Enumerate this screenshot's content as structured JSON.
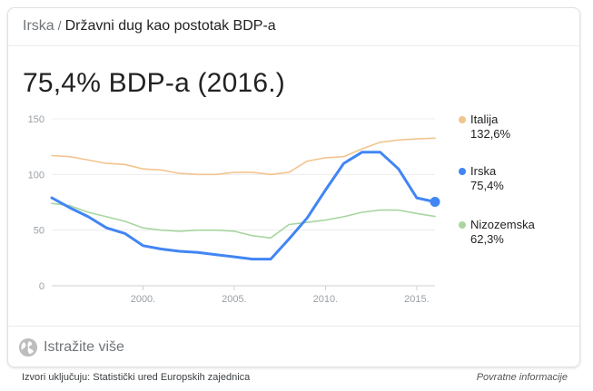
{
  "breadcrumb": {
    "country": "Irska",
    "separator": "/",
    "topic": "Državni dug kao postotak BDP-a"
  },
  "headline": "75,4% BDP-a (2016.)",
  "legend": [
    {
      "name": "Italija",
      "value": "132,6%",
      "color": "#f2c48f"
    },
    {
      "name": "Irska",
      "value": "75,4%",
      "color": "#4285f4"
    },
    {
      "name": "Nizozemska",
      "value": "62,3%",
      "color": "#a8d5a0"
    }
  ],
  "explore": {
    "label": "Istražite više",
    "icon": "globe-icon"
  },
  "footer": {
    "sources": "Izvori uključuju: Statistički ured Europskih zajednica",
    "feedback": "Povratne informacije"
  },
  "chart_data": {
    "type": "line",
    "title": "",
    "xlabel": "",
    "ylabel": "",
    "x": [
      1995,
      1996,
      1997,
      1998,
      1999,
      2000,
      2001,
      2002,
      2003,
      2004,
      2005,
      2006,
      2007,
      2008,
      2009,
      2010,
      2011,
      2012,
      2013,
      2014,
      2015,
      2016
    ],
    "xlim": [
      1995,
      2016
    ],
    "ylim": [
      0,
      150
    ],
    "y_ticks": [
      0,
      50,
      100,
      150
    ],
    "x_ticks": [
      2000,
      2005,
      2010,
      2015
    ],
    "x_tick_labels": [
      "2000.",
      "2005.",
      "2010.",
      "2015."
    ],
    "grid": true,
    "legend_position": "right",
    "series": [
      {
        "name": "Italija",
        "color": "#f2c48f",
        "values": [
          117,
          116,
          113,
          110,
          109,
          105,
          104,
          101,
          100,
          100,
          102,
          102,
          100,
          102,
          112,
          115,
          116,
          123,
          129,
          131,
          132,
          132.6
        ]
      },
      {
        "name": "Irska",
        "color": "#4285f4",
        "values": [
          79,
          70,
          62,
          52,
          47,
          36,
          33,
          31,
          30,
          28,
          26,
          24,
          24,
          42,
          61,
          86,
          110,
          120,
          120,
          105,
          79,
          75.4
        ]
      },
      {
        "name": "Nizozemska",
        "color": "#a8d5a0",
        "values": [
          74,
          72,
          66,
          62,
          58,
          52,
          50,
          49,
          50,
          50,
          49,
          45,
          43,
          55,
          57,
          59,
          62,
          66,
          68,
          68,
          65,
          62.3
        ]
      }
    ],
    "highlight": {
      "series": "Irska",
      "year": 2016,
      "value": 75.4
    }
  }
}
